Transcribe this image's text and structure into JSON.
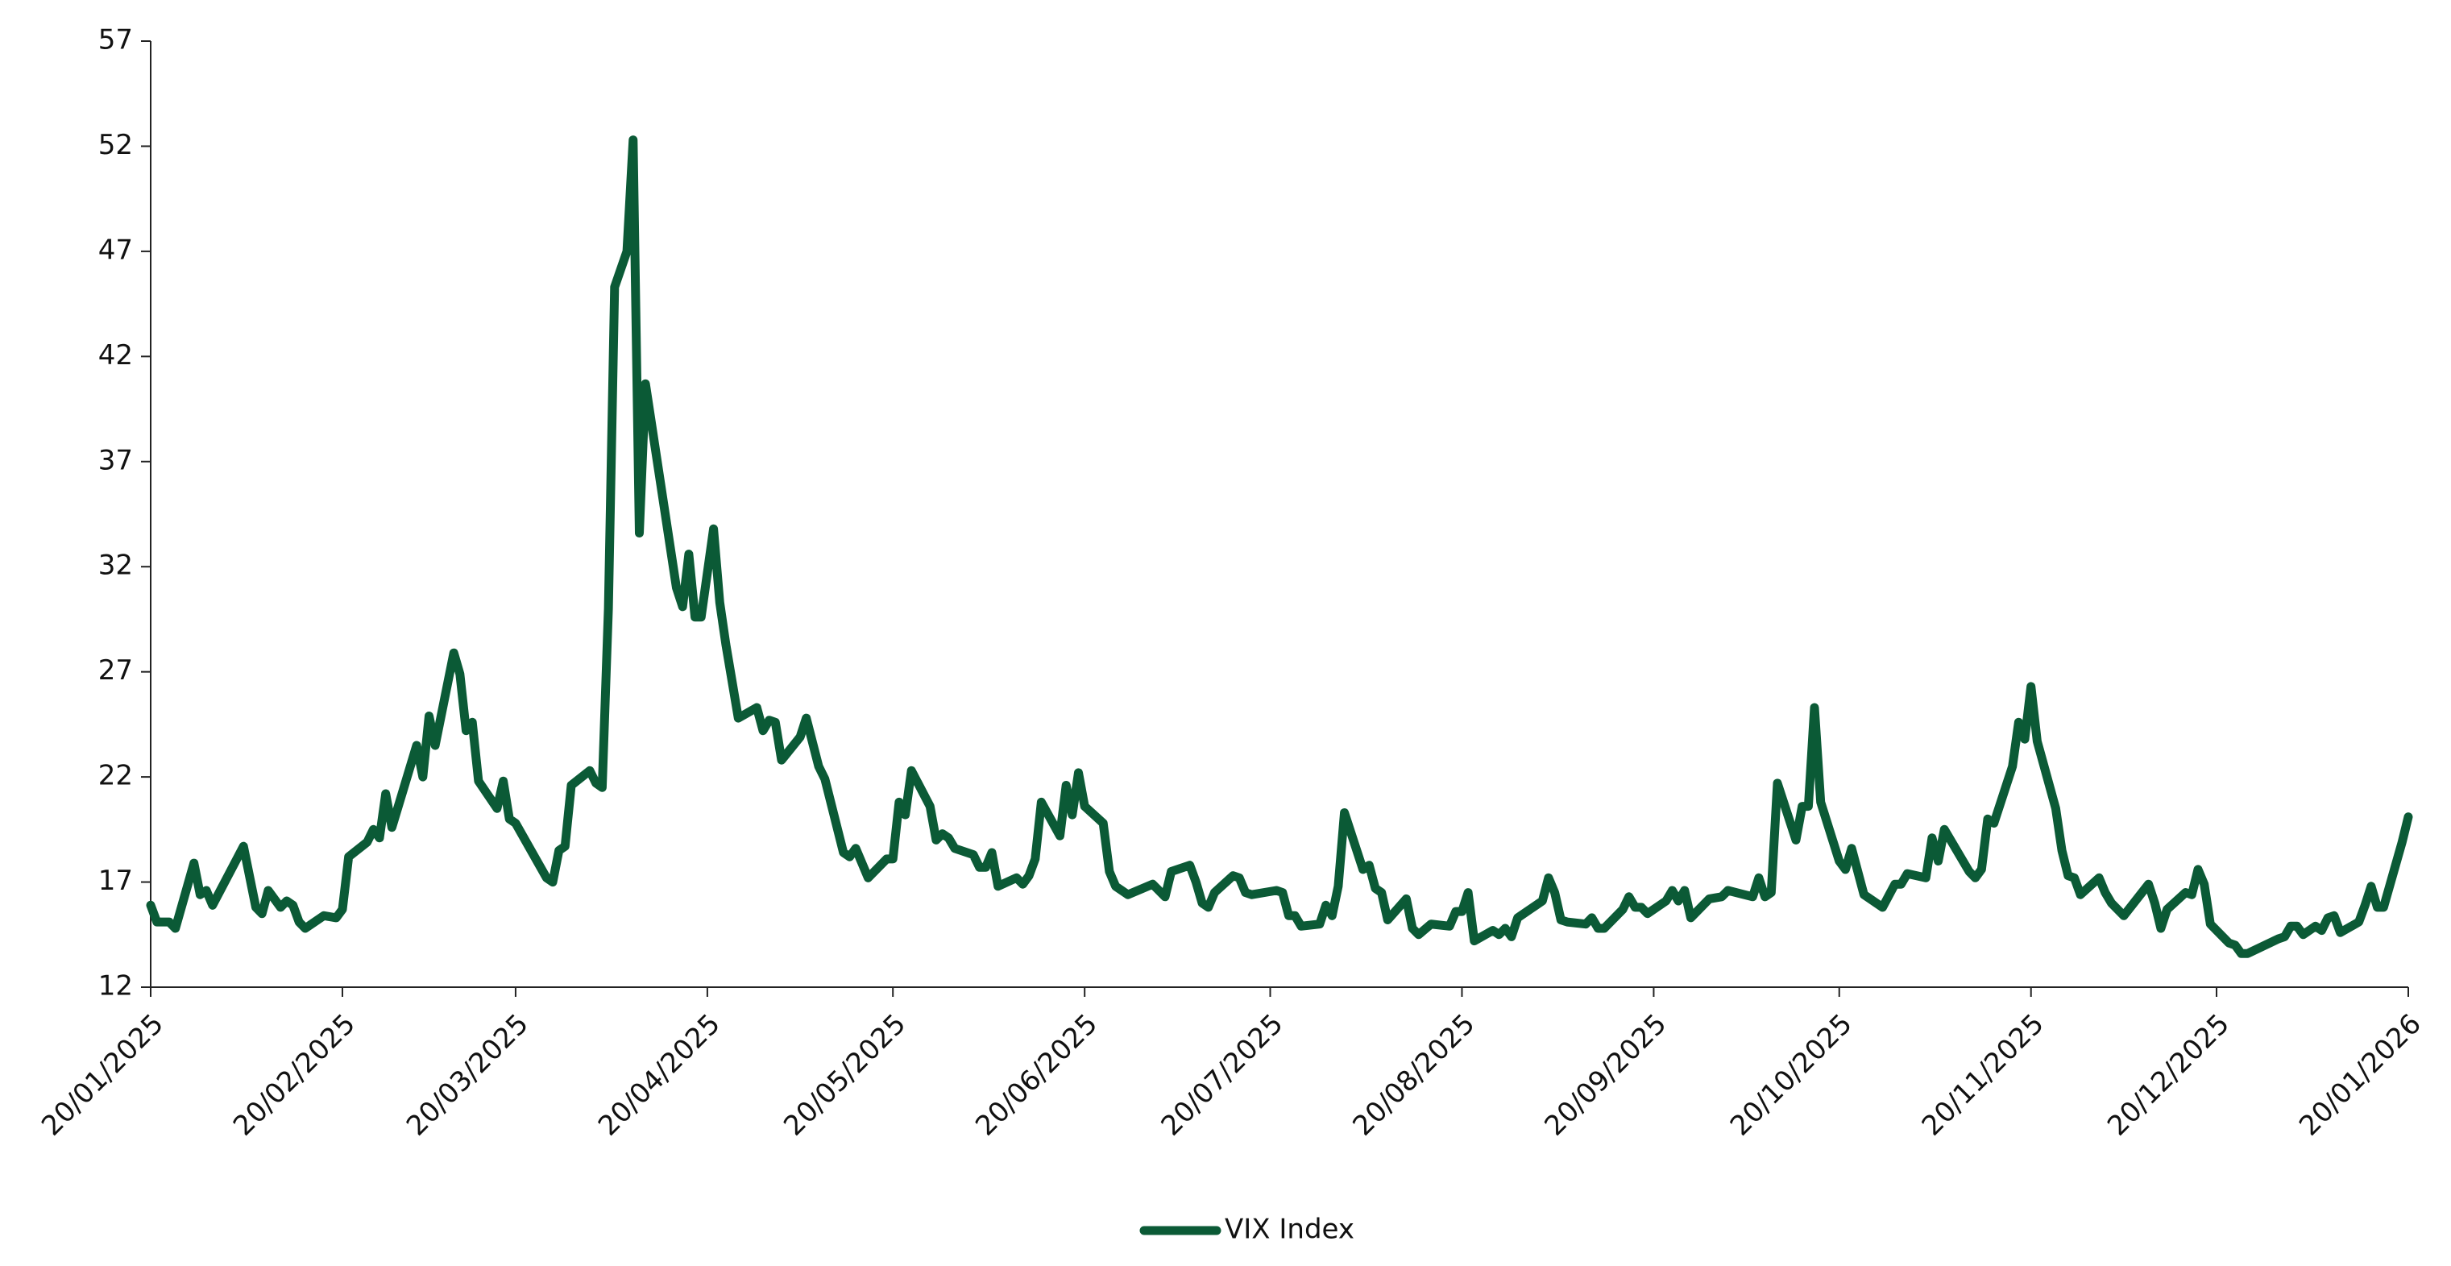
{
  "chart_data": {
    "type": "line",
    "x": [
      "20/01/2025",
      "21/01/2025",
      "23/01/2025",
      "24/01/2025",
      "27/01/2025",
      "28/01/2025",
      "29/01/2025",
      "30/01/2025",
      "04/02/2025",
      "06/02/2025",
      "07/02/2025",
      "08/02/2025",
      "10/02/2025",
      "11/02/2025",
      "12/02/2025",
      "13/02/2025",
      "14/02/2025",
      "17/02/2025",
      "19/02/2025",
      "20/02/2025",
      "21/02/2025",
      "24/02/2025",
      "25/02/2025",
      "26/02/2025",
      "27/02/2025",
      "28/02/2025",
      "04/03/2025",
      "05/03/2025",
      "06/03/2025",
      "07/03/2025",
      "10/03/2025",
      "11/03/2025",
      "12/03/2025",
      "13/03/2025",
      "14/03/2025",
      "17/03/2025",
      "18/03/2025",
      "19/03/2025",
      "20/03/2025",
      "25/03/2025",
      "26/03/2025",
      "27/03/2025",
      "28/03/2025",
      "29/03/2025",
      "01/04/2025",
      "02/04/2025",
      "03/04/2025",
      "04/04/2025",
      "05/04/2025",
      "07/04/2025",
      "08/04/2025",
      "09/04/2025",
      "10/04/2025",
      "15/04/2025",
      "16/04/2025",
      "17/04/2025",
      "18/04/2025",
      "19/04/2025",
      "21/04/2025",
      "22/04/2025",
      "23/04/2025",
      "25/04/2025",
      "28/04/2025",
      "29/04/2025",
      "30/04/2025",
      "01/05/2025",
      "02/05/2025",
      "05/05/2025",
      "06/05/2025",
      "08/05/2025",
      "09/05/2025",
      "12/05/2025",
      "13/05/2025",
      "14/05/2025",
      "16/05/2025",
      "19/05/2025",
      "20/05/2025",
      "21/05/2025",
      "22/05/2025",
      "23/05/2025",
      "26/05/2025",
      "27/05/2025",
      "28/05/2025",
      "29/05/2025",
      "30/05/2025",
      "02/06/2025",
      "03/06/2025",
      "04/06/2025",
      "05/06/2025",
      "06/06/2025",
      "09/06/2025",
      "10/06/2025",
      "11/06/2025",
      "12/06/2025",
      "13/06/2025",
      "16/06/2025",
      "17/06/2025",
      "18/06/2025",
      "19/06/2025",
      "20/06/2025",
      "23/06/2025",
      "24/06/2025",
      "25/06/2025",
      "27/06/2025",
      "01/07/2025",
      "03/07/2025",
      "04/07/2025",
      "07/07/2025",
      "08/07/2025",
      "09/07/2025",
      "10/07/2025",
      "11/07/2025",
      "14/07/2025",
      "15/07/2025",
      "16/07/2025",
      "17/07/2025",
      "21/07/2025",
      "22/07/2025",
      "23/07/2025",
      "24/07/2025",
      "25/07/2025",
      "28/07/2025",
      "29/07/2025",
      "30/07/2025",
      "31/07/2025",
      "01/08/2025",
      "04/08/2025",
      "05/08/2025",
      "06/08/2025",
      "07/08/2025",
      "08/08/2025",
      "11/08/2025",
      "12/08/2025",
      "13/08/2025",
      "15/08/2025",
      "18/08/2025",
      "19/08/2025",
      "20/08/2025",
      "21/08/2025",
      "22/08/2025",
      "25/08/2025",
      "26/08/2025",
      "27/08/2025",
      "28/08/2025",
      "29/08/2025",
      "02/09/2025",
      "03/09/2025",
      "04/09/2025",
      "05/09/2025",
      "06/09/2025",
      "09/09/2025",
      "10/09/2025",
      "11/09/2025",
      "12/09/2025",
      "15/09/2025",
      "16/09/2025",
      "17/09/2025",
      "18/09/2025",
      "19/09/2025",
      "22/09/2025",
      "23/09/2025",
      "24/09/2025",
      "25/09/2025",
      "26/09/2025",
      "29/09/2025",
      "01/10/2025",
      "02/10/2025",
      "06/10/2025",
      "07/10/2025",
      "08/10/2025",
      "09/10/2025",
      "10/10/2025",
      "13/10/2025",
      "14/10/2025",
      "15/10/2025",
      "16/10/2025",
      "17/10/2025",
      "20/10/2025",
      "21/10/2025",
      "22/10/2025",
      "24/10/2025",
      "27/10/2025",
      "29/10/2025",
      "30/10/2025",
      "31/10/2025",
      "03/11/2025",
      "04/11/2025",
      "05/11/2025",
      "06/11/2025",
      "10/11/2025",
      "11/11/2025",
      "12/11/2025",
      "13/11/2025",
      "14/11/2025",
      "17/11/2025",
      "18/11/2025",
      "19/11/2025",
      "20/11/2025",
      "21/11/2025",
      "24/11/2025",
      "25/11/2025",
      "26/11/2025",
      "27/11/2025",
      "28/11/2025",
      "01/12/2025",
      "02/12/2025",
      "03/12/2025",
      "05/12/2025",
      "09/12/2025",
      "10/12/2025",
      "11/12/2025",
      "12/12/2025",
      "15/12/2025",
      "16/12/2025",
      "17/12/2025",
      "18/12/2025",
      "19/12/2025",
      "22/12/2025",
      "23/12/2025",
      "24/12/2025",
      "25/12/2025",
      "30/12/2025",
      "31/12/2025",
      "01/01/2026",
      "02/01/2026",
      "03/01/2026",
      "05/01/2026",
      "06/01/2026",
      "07/01/2026",
      "08/01/2026",
      "09/01/2026",
      "12/01/2026",
      "13/01/2026",
      "14/01/2026",
      "15/01/2026",
      "16/01/2026",
      "19/01/2026",
      "20/01/2026"
    ],
    "series": [
      {
        "name": "VIX Index",
        "color": "#0b5a36",
        "values": [
          15.9,
          15.1,
          15.1,
          14.8,
          17.9,
          16.4,
          16.6,
          15.9,
          18.7,
          15.8,
          15.5,
          16.6,
          15.8,
          16.1,
          15.9,
          15.1,
          14.8,
          15.4,
          15.3,
          15.7,
          18.2,
          18.9,
          19.5,
          19.1,
          21.2,
          19.6,
          23.5,
          22.0,
          24.9,
          23.5,
          27.9,
          26.9,
          24.2,
          24.6,
          21.8,
          20.5,
          21.8,
          20.0,
          19.8,
          17.2,
          17.0,
          18.5,
          18.7,
          21.6,
          22.3,
          21.7,
          21.5,
          30.0,
          45.3,
          47.0,
          52.3,
          33.6,
          40.7,
          31.0,
          30.1,
          32.6,
          29.6,
          29.6,
          33.8,
          30.3,
          28.3,
          24.8,
          25.3,
          24.2,
          24.7,
          24.6,
          22.8,
          23.9,
          24.8,
          22.5,
          21.9,
          18.4,
          18.2,
          18.6,
          17.2,
          18.1,
          18.1,
          20.8,
          20.2,
          22.3,
          20.6,
          19.0,
          19.3,
          19.1,
          18.6,
          18.3,
          17.7,
          17.7,
          18.4,
          16.8,
          17.2,
          16.9,
          17.3,
          18.1,
          20.8,
          19.2,
          21.6,
          20.2,
          22.2,
          20.6,
          19.8,
          17.5,
          16.8,
          16.4,
          16.9,
          16.3,
          17.5,
          17.8,
          17.0,
          16.0,
          15.8,
          16.5,
          17.3,
          17.2,
          16.5,
          16.4,
          16.6,
          16.5,
          15.4,
          15.4,
          14.9,
          15.0,
          15.9,
          15.4,
          16.8,
          20.3,
          17.6,
          17.8,
          16.7,
          16.5,
          15.2,
          16.2,
          14.8,
          14.5,
          15.0,
          14.9,
          15.6,
          15.6,
          16.5,
          14.2,
          14.7,
          14.5,
          14.8,
          14.4,
          15.3,
          16.1,
          17.2,
          16.5,
          15.2,
          15.1,
          15.0,
          15.3,
          14.8,
          14.8,
          15.7,
          16.3,
          15.8,
          15.8,
          15.5,
          16.1,
          16.6,
          16.1,
          16.6,
          15.3,
          16.2,
          16.3,
          16.6,
          16.3,
          17.2,
          16.3,
          16.5,
          21.7,
          19.0,
          20.6,
          20.6,
          25.3,
          20.8,
          18.0,
          17.6,
          18.6,
          16.4,
          15.8,
          16.9,
          16.9,
          17.4,
          17.2,
          19.1,
          18.0,
          19.5,
          17.5,
          17.2,
          17.6,
          20.0,
          19.8,
          22.5,
          24.6,
          23.8,
          26.3,
          23.7,
          20.5,
          18.5,
          17.3,
          17.2,
          16.4,
          17.2,
          16.5,
          16.0,
          15.4,
          16.9,
          16.0,
          14.8,
          15.7,
          16.5,
          16.4,
          17.6,
          16.9,
          15.0,
          14.1,
          14.0,
          13.6,
          13.6,
          14.3,
          14.4,
          14.9,
          14.9,
          14.5,
          14.9,
          14.7,
          15.3,
          15.4,
          14.6,
          15.1,
          15.9,
          16.8,
          15.8,
          15.8,
          18.9,
          20.1
        ]
      }
    ],
    "xlim": [
      "20/01/2025",
      "20/01/2026"
    ],
    "xticks": [
      "20/01/2025",
      "20/02/2025",
      "20/03/2025",
      "20/04/2025",
      "20/05/2025",
      "20/06/2025",
      "20/07/2025",
      "20/08/2025",
      "20/09/2025",
      "20/10/2025",
      "20/11/2025",
      "20/12/2025",
      "20/01/2026"
    ],
    "ylim": [
      12,
      57
    ],
    "yticks": [
      12,
      17,
      22,
      27,
      32,
      37,
      42,
      47,
      52,
      57
    ],
    "grid": false,
    "legend": "bottom"
  }
}
